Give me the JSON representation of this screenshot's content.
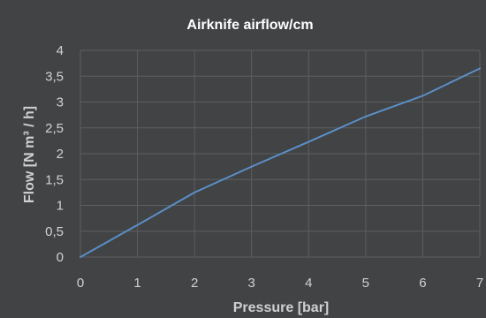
{
  "chart_data": {
    "type": "line",
    "title": "Airknife airflow/cm",
    "xlabel": "Pressure [bar]",
    "ylabel": "Flow [N m³ / h]",
    "xlim": [
      0,
      7
    ],
    "ylim": [
      0,
      4
    ],
    "x_ticks": [
      "0",
      "1",
      "2",
      "3",
      "4",
      "5",
      "6",
      "7"
    ],
    "y_ticks": [
      "0",
      "0,5",
      "1",
      "1,5",
      "2",
      "2,5",
      "3",
      "3,5",
      "4"
    ],
    "grid": true,
    "legend": "none",
    "series": [
      {
        "color": "#5b8fc7",
        "x": [
          0,
          1,
          2,
          3,
          4,
          5,
          6,
          7
        ],
        "y": [
          0,
          0.62,
          1.25,
          1.75,
          2.23,
          2.72,
          3.12,
          3.65
        ]
      }
    ]
  },
  "colors": {
    "background": "#414345",
    "grid": "#5d5f61"
  }
}
